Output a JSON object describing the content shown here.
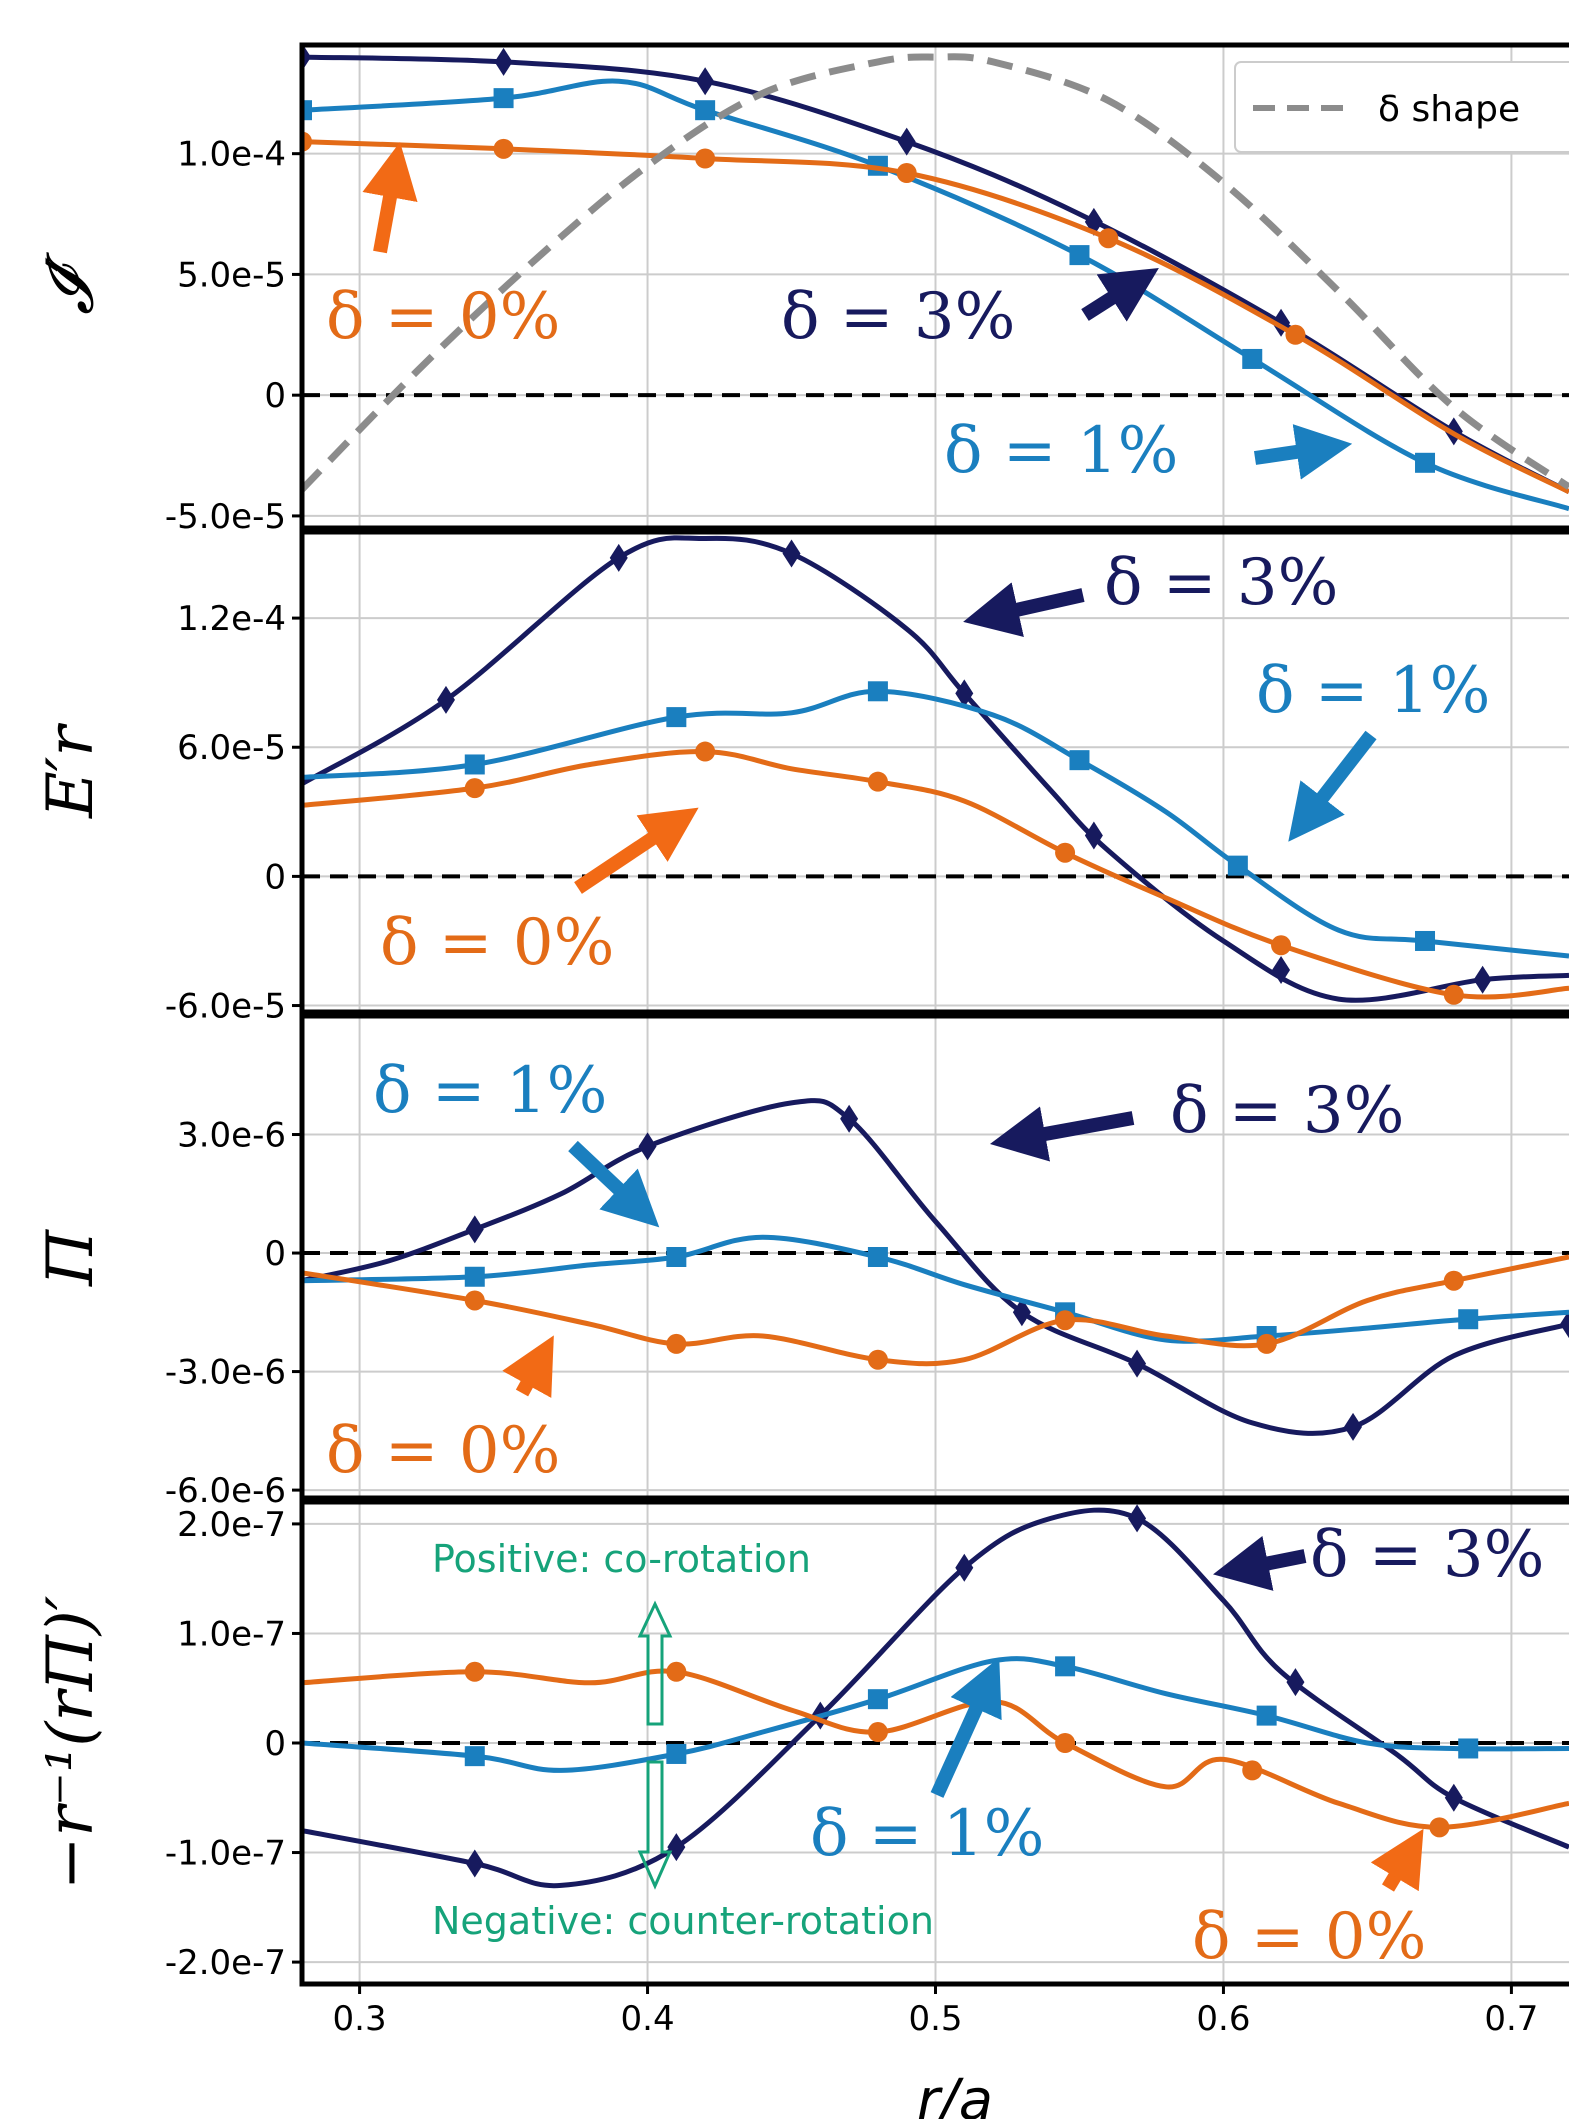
{
  "colors": {
    "d0": "#e36b17",
    "d1": "#1a7fbf",
    "d3": "#171a5e",
    "shape": "#8c8c8c",
    "note": "#16a37a"
  },
  "legend": {
    "label": "δ shape"
  },
  "chart_data": [
    {
      "type": "line",
      "ylabel": "𝓘′",
      "xlim": [
        0.28,
        0.72
      ],
      "ylim": [
        -5.5e-05,
        0.000145
      ],
      "yticks": [
        -5e-05,
        0,
        5e-05,
        0.0001
      ],
      "yticklabels": [
        "-5.0e-5",
        "0",
        "5.0e-5",
        "1.0e-4"
      ],
      "series": [
        {
          "name": "δ = 3%",
          "key": "d3",
          "marker": "diamond",
          "x": [
            0.28,
            0.35,
            0.42,
            0.49,
            0.55,
            0.62,
            0.68,
            0.72
          ],
          "y": [
            0.00014,
            0.000138,
            0.00013,
            0.000105,
            7.5e-05,
            3e-05,
            -1.5e-05,
            -4e-05
          ],
          "mx": [
            0.28,
            0.35,
            0.42,
            0.49,
            0.555,
            0.62,
            0.68
          ]
        },
        {
          "name": "δ = 1%",
          "key": "d1",
          "marker": "square",
          "x": [
            0.28,
            0.35,
            0.39,
            0.42,
            0.48,
            0.55,
            0.61,
            0.67,
            0.72
          ],
          "y": [
            0.000118,
            0.000123,
            0.00013,
            0.000118,
            9.5e-05,
            5.8e-05,
            1.5e-05,
            -2.8e-05,
            -4.7e-05
          ],
          "mx": [
            0.28,
            0.35,
            0.42,
            0.48,
            0.55,
            0.61,
            0.67
          ]
        },
        {
          "name": "δ = 0%",
          "key": "d0",
          "marker": "circle",
          "x": [
            0.28,
            0.35,
            0.42,
            0.49,
            0.56,
            0.625,
            0.68,
            0.72
          ],
          "y": [
            0.000105,
            0.000102,
            9.8e-05,
            9.2e-05,
            6.5e-05,
            2.5e-05,
            -1.6e-05,
            -4e-05
          ],
          "mx": [
            0.28,
            0.35,
            0.42,
            0.49,
            0.56,
            0.625
          ]
        },
        {
          "name": "δ shape",
          "key": "shape",
          "dashed": true,
          "marker": "none",
          "x": [
            0.28,
            0.32,
            0.36,
            0.4,
            0.44,
            0.48,
            0.5,
            0.52,
            0.56,
            0.6,
            0.64,
            0.68,
            0.72
          ],
          "y": [
            -3.9e-05,
            1e-05,
            5.5e-05,
            9.5e-05,
            0.000125,
            0.000138,
            0.00014,
            0.000138,
            0.000122,
            8.8e-05,
            4.3e-05,
            -5e-06,
            -3.8e-05
          ],
          "mx": []
        }
      ],
      "annotations": [
        {
          "text": "δ = 0%",
          "key": "d0"
        },
        {
          "text": "δ = 3%",
          "key": "d3"
        },
        {
          "text": "δ = 1%",
          "key": "d1"
        }
      ]
    },
    {
      "type": "line",
      "ylabel": "E′r",
      "xlim": [
        0.28,
        0.72
      ],
      "ylim": [
        -6.3e-05,
        0.00016
      ],
      "yticks": [
        -6e-05,
        0,
        6e-05,
        0.00012
      ],
      "yticklabels": [
        "-6.0e-5",
        "0",
        "6.0e-5",
        "1.2e-4"
      ],
      "series": [
        {
          "name": "δ = 3%",
          "key": "d3",
          "marker": "diamond",
          "x": [
            0.28,
            0.33,
            0.39,
            0.42,
            0.45,
            0.49,
            0.51,
            0.54,
            0.56,
            0.6,
            0.64,
            0.69,
            0.72
          ],
          "y": [
            4.3e-05,
            8.2e-05,
            0.000148,
            0.000157,
            0.00015,
            0.000115,
            8.5e-05,
            4e-05,
            1.2e-05,
            -3e-05,
            -5.7e-05,
            -4.8e-05,
            -4.6e-05
          ],
          "mx": [
            0.33,
            0.39,
            0.45,
            0.51,
            0.555,
            0.62,
            0.69
          ]
        },
        {
          "name": "δ = 1%",
          "key": "d1",
          "marker": "square",
          "x": [
            0.28,
            0.34,
            0.41,
            0.45,
            0.48,
            0.52,
            0.55,
            0.58,
            0.605,
            0.64,
            0.67,
            0.72
          ],
          "y": [
            4.6e-05,
            5.2e-05,
            7.4e-05,
            7.6e-05,
            8.6e-05,
            7.5e-05,
            5.4e-05,
            3e-05,
            5e-06,
            -2.5e-05,
            -3e-05,
            -3.7e-05
          ],
          "mx": [
            0.34,
            0.41,
            0.48,
            0.55,
            0.605,
            0.67
          ]
        },
        {
          "name": "δ = 0%",
          "key": "d0",
          "marker": "circle",
          "x": [
            0.28,
            0.34,
            0.38,
            0.42,
            0.45,
            0.48,
            0.51,
            0.545,
            0.58,
            0.62,
            0.68,
            0.72
          ],
          "y": [
            3.3e-05,
            4.1e-05,
            5.2e-05,
            5.8e-05,
            5e-05,
            4.4e-05,
            3.5e-05,
            1.1e-05,
            -1e-05,
            -3.2e-05,
            -5.5e-05,
            -5.2e-05
          ],
          "mx": [
            0.34,
            0.42,
            0.48,
            0.545,
            0.62,
            0.68
          ]
        }
      ],
      "annotations": [
        {
          "text": "δ = 3%",
          "key": "d3"
        },
        {
          "text": "δ = 1%",
          "key": "d1"
        },
        {
          "text": "δ = 0%",
          "key": "d0"
        }
      ]
    },
    {
      "type": "line",
      "ylabel": "Π",
      "xlim": [
        0.28,
        0.72
      ],
      "ylim": [
        -6.2e-06,
        6e-06
      ],
      "yticks": [
        -6e-06,
        -3e-06,
        0,
        3e-06
      ],
      "yticklabels": [
        "-6.0e-6",
        "-3.0e-6",
        "0",
        "3.0e-6"
      ],
      "series": [
        {
          "name": "δ = 3%",
          "key": "d3",
          "marker": "diamond",
          "x": [
            0.28,
            0.31,
            0.34,
            0.37,
            0.4,
            0.45,
            0.47,
            0.5,
            0.53,
            0.57,
            0.61,
            0.645,
            0.68,
            0.72
          ],
          "y": [
            -7e-07,
            -2e-07,
            6e-07,
            1.5e-06,
            2.7e-06,
            3.8e-06,
            3.4e-06,
            8e-07,
            -1.5e-06,
            -2.8e-06,
            -4.3e-06,
            -4.4e-06,
            -2.6e-06,
            -1.8e-06
          ],
          "mx": [
            0.34,
            0.4,
            0.47,
            0.53,
            0.57,
            0.645,
            0.72
          ]
        },
        {
          "name": "δ = 1%",
          "key": "d1",
          "marker": "square",
          "x": [
            0.28,
            0.34,
            0.38,
            0.41,
            0.44,
            0.48,
            0.51,
            0.545,
            0.58,
            0.615,
            0.65,
            0.68,
            0.72
          ],
          "y": [
            -7e-07,
            -6e-07,
            -3e-07,
            -1e-07,
            4e-07,
            -1e-07,
            -8e-07,
            -1.5e-06,
            -2.2e-06,
            -2.1e-06,
            -1.9e-06,
            -1.7e-06,
            -1.5e-06
          ],
          "mx": [
            0.34,
            0.41,
            0.48,
            0.545,
            0.615,
            0.685
          ]
        },
        {
          "name": "δ = 0%",
          "key": "d0",
          "marker": "circle",
          "x": [
            0.28,
            0.34,
            0.38,
            0.41,
            0.44,
            0.48,
            0.51,
            0.545,
            0.58,
            0.615,
            0.65,
            0.68,
            0.72
          ],
          "y": [
            -5e-07,
            -1.2e-06,
            -1.8e-06,
            -2.3e-06,
            -2.1e-06,
            -2.7e-06,
            -2.7e-06,
            -1.7e-06,
            -2.1e-06,
            -2.3e-06,
            -1.2e-06,
            -7e-07,
            -1e-07
          ],
          "mx": [
            0.34,
            0.41,
            0.48,
            0.545,
            0.615,
            0.68
          ]
        }
      ],
      "annotations": [
        {
          "text": "δ = 1%",
          "key": "d1"
        },
        {
          "text": "δ = 3%",
          "key": "d3"
        },
        {
          "text": "δ = 0%",
          "key": "d0"
        }
      ]
    },
    {
      "type": "line",
      "ylabel": "−r⁻¹(rΠ)′",
      "xlim": [
        0.28,
        0.72
      ],
      "ylim": [
        -2.2e-07,
        2.2e-07
      ],
      "yticks": [
        -2e-07,
        -1e-07,
        0,
        1e-07,
        2e-07
      ],
      "yticklabels": [
        "-2.0e-7",
        "-1.0e-7",
        "0",
        "1.0e-7",
        "2.0e-7"
      ],
      "series": [
        {
          "name": "δ = 3%",
          "key": "d3",
          "marker": "diamond",
          "x": [
            0.28,
            0.34,
            0.37,
            0.41,
            0.46,
            0.51,
            0.54,
            0.57,
            0.6,
            0.62,
            0.66,
            0.68,
            0.72
          ],
          "y": [
            -8e-08,
            -1.1e-07,
            -1.3e-07,
            -9.5e-08,
            2.5e-08,
            1.6e-07,
            2.05e-07,
            2.05e-07,
            1.3e-07,
            6.5e-08,
            -1e-08,
            -5e-08,
            -9.5e-08
          ],
          "mx": [
            0.34,
            0.41,
            0.46,
            0.51,
            0.57,
            0.625,
            0.68
          ]
        },
        {
          "name": "δ = 1%",
          "key": "d1",
          "marker": "square",
          "x": [
            0.28,
            0.34,
            0.37,
            0.41,
            0.44,
            0.48,
            0.52,
            0.545,
            0.58,
            0.615,
            0.65,
            0.68,
            0.72
          ],
          "y": [
            0,
            -1.2e-08,
            -2.5e-08,
            -1e-08,
            1e-08,
            4e-08,
            7.5e-08,
            7e-08,
            4.5e-08,
            2.5e-08,
            0,
            -5e-09,
            -5e-09
          ],
          "mx": [
            0.34,
            0.41,
            0.48,
            0.545,
            0.615,
            0.685
          ]
        },
        {
          "name": "δ = 0%",
          "key": "d0",
          "marker": "circle",
          "x": [
            0.28,
            0.34,
            0.38,
            0.41,
            0.45,
            0.48,
            0.52,
            0.545,
            0.58,
            0.6,
            0.64,
            0.675,
            0.72
          ],
          "y": [
            5.5e-08,
            6.5e-08,
            5.5e-08,
            6.5e-08,
            3e-08,
            1e-08,
            3.8e-08,
            0,
            -4e-08,
            -1.5e-08,
            -5.5e-08,
            -7.7e-08,
            -5.5e-08
          ],
          "mx": [
            0.34,
            0.41,
            0.48,
            0.545,
            0.61,
            0.675
          ]
        }
      ],
      "notes": {
        "positive": "Positive: co-rotation",
        "negative": "Negative: counter-rotation"
      },
      "annotations": [
        {
          "text": "δ = 3%",
          "key": "d3"
        },
        {
          "text": "δ = 1%",
          "key": "d1"
        },
        {
          "text": "δ = 0%",
          "key": "d0"
        }
      ]
    }
  ],
  "xaxis": {
    "label": "r/a",
    "ticks": [
      0.3,
      0.4,
      0.5,
      0.6,
      0.7
    ],
    "ticklabels": [
      "0.3",
      "0.4",
      "0.5",
      "0.6",
      "0.7"
    ]
  }
}
